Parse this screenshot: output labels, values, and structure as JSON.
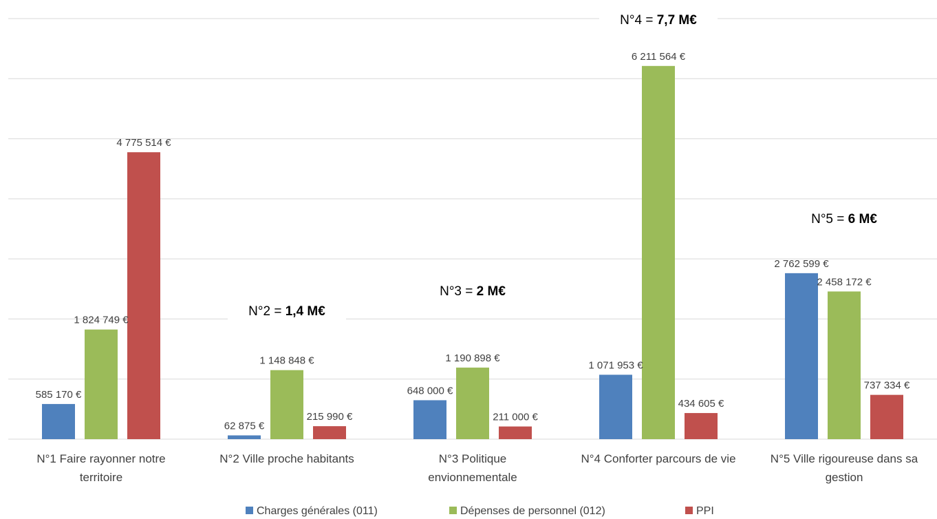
{
  "chart_data": {
    "type": "bar",
    "categories": [
      [
        "N°1 Faire rayonner notre",
        "territoire"
      ],
      [
        "N°2 Ville proche habitants"
      ],
      [
        "N°3 Politique",
        "envionnementale"
      ],
      [
        "N°4 Conforter parcours de vie"
      ],
      [
        "N°5 Ville rigoureuse dans sa",
        "gestion"
      ]
    ],
    "series": [
      {
        "name": "Charges générales (011)",
        "color": "#4F81BD",
        "values": [
          585170,
          62875,
          648000,
          1071953,
          2762599
        ],
        "labels": [
          "585 170 €",
          "62 875 €",
          "648 000 €",
          "1 071 953 €",
          "2 762 599 €"
        ]
      },
      {
        "name": "Dépenses de personnel (012)",
        "color": "#9BBB59",
        "values": [
          1824749,
          1148848,
          1190898,
          6211564,
          2458172
        ],
        "labels": [
          "1 824 749 €",
          "1 148 848 €",
          "1 190 898 €",
          "6 211 564 €",
          "2 458 172 €"
        ]
      },
      {
        "name": "PPI",
        "color": "#C0504D",
        "values": [
          4775514,
          215990,
          211000,
          434605,
          737334
        ],
        "labels": [
          "4 775 514 €",
          "215 990 €",
          "211 000 €",
          "434 605 €",
          "737 334 €"
        ]
      }
    ],
    "ylim": [
      0,
      7000000
    ],
    "grid": true,
    "legend_position": "bottom",
    "annotations": [
      {
        "category": 1,
        "prefix": "N°2 = ",
        "value": "1,4 M€"
      },
      {
        "category": 2,
        "prefix": "N°3 = ",
        "value": "2 M€"
      },
      {
        "category": 3,
        "prefix": "N°4 = ",
        "value": "7,7 M€"
      },
      {
        "category": 4,
        "prefix": "N°5 = ",
        "value": "6 M€"
      }
    ]
  }
}
